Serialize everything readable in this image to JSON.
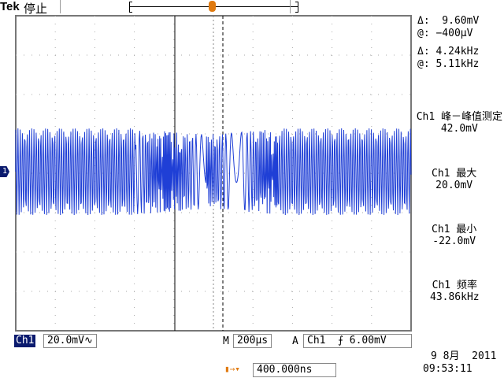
{
  "header": {
    "brand": "Tek",
    "status": "停止"
  },
  "cursors": {
    "delta_v": "Δ:  9.60mV",
    "at_v": "@: −400µV",
    "delta_f": "Δ: 4.24kHz",
    "at_f": "@: 5.11kHz"
  },
  "measurements": [
    {
      "label": "Ch1 峰－峰值测定",
      "value": "42.0mV"
    },
    {
      "label": "Ch1 最大",
      "value": "20.0mV"
    },
    {
      "label": "Ch1 最小",
      "value": "-22.0mV"
    },
    {
      "label": "Ch1 频率",
      "value": "43.86kHz"
    }
  ],
  "footer": {
    "channel": "Ch1",
    "volts_div": "20.0mV∿",
    "m_label": "M",
    "time_div": "200µs",
    "a_label": "A",
    "trig_src": "Ch1",
    "trig_slope": "⨍",
    "trig_level": "6.00mV",
    "trig_pos": "400.000ns",
    "date": "9 8月  2011",
    "time": "09:53:11"
  },
  "channel_marker": "1",
  "colors": {
    "trace": "#1f3fd6",
    "trigger": "#e07a10",
    "ch_badge": "#0a1a6e"
  }
}
